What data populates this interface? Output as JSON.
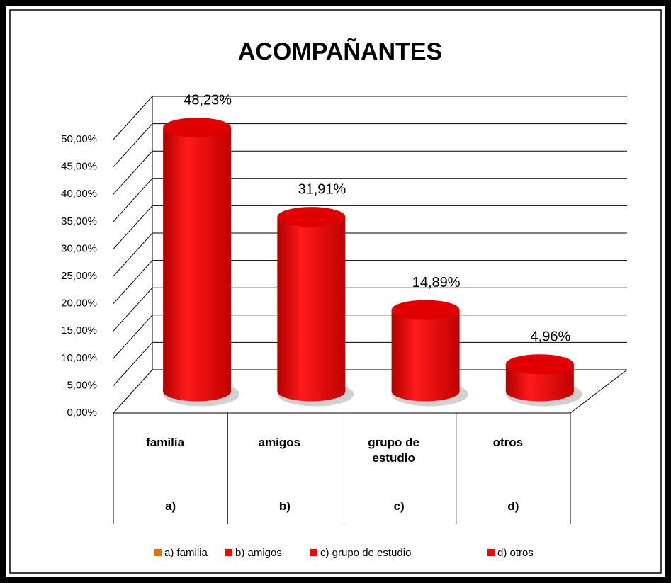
{
  "chart_data": {
    "type": "bar",
    "title": "ACOMPAÑANTES",
    "categories": [
      "familia",
      "amigos",
      "grupo de estudio",
      "otros"
    ],
    "subcategories": [
      "a)",
      "b)",
      "c)",
      "d)"
    ],
    "values": [
      48.23,
      31.91,
      14.89,
      4.96
    ],
    "value_labels": [
      "48,23%",
      "31,91%",
      "14,89%",
      "4,96%"
    ],
    "color": "#ff0000",
    "ylim": [
      0,
      50
    ],
    "yticks": [
      {
        "value": 0,
        "label": "0,00%"
      },
      {
        "value": 5,
        "label": "5,00%"
      },
      {
        "value": 10,
        "label": "10,00%"
      },
      {
        "value": 15,
        "label": "15,00%"
      },
      {
        "value": 20,
        "label": "20,00%"
      },
      {
        "value": 25,
        "label": "25,00%"
      },
      {
        "value": 30,
        "label": "30,00%"
      },
      {
        "value": 35,
        "label": "35,00%"
      },
      {
        "value": 40,
        "label": "40,00%"
      },
      {
        "value": 45,
        "label": "45,00%"
      },
      {
        "value": 50,
        "label": "50,00%"
      }
    ],
    "grid": true,
    "legend": [
      "a) familia",
      "b) amigos",
      "c) grupo de estudio",
      "d) otros"
    ],
    "legend_colors": [
      "#e87000",
      "#ff0000",
      "#ff0000",
      "#ff0000"
    ],
    "legend_position": "bottom"
  }
}
